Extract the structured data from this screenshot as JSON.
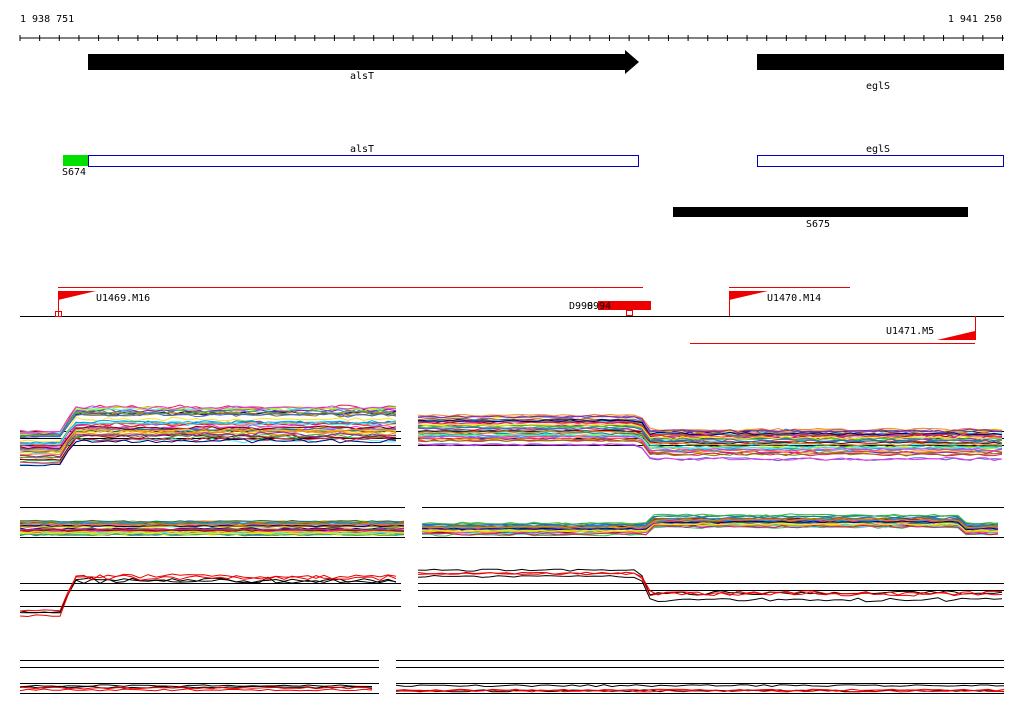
{
  "ruler": {
    "start": "1 938 751",
    "end": "1 941 250"
  },
  "genes": [
    {
      "label": "alsT"
    },
    {
      "label": "eglS"
    }
  ],
  "transcripts": [
    {
      "label": "alsT"
    },
    {
      "label": "eglS"
    }
  ],
  "features": [
    {
      "label": "S674"
    },
    {
      "label": "S675"
    }
  ],
  "promoters": [
    {
      "label": "U1469.M16"
    },
    {
      "label": "D990"
    },
    {
      "label": "S994"
    },
    {
      "label": "U1470.M14"
    },
    {
      "label": "U1471.M5"
    }
  ]
}
